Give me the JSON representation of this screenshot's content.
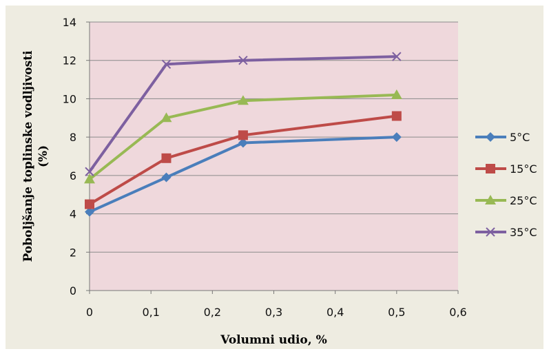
{
  "chart_data": {
    "type": "line",
    "title": "",
    "xlabel": "Volumni udio, %",
    "ylabel_line1": "Poboljšanje toplinske vodljivosti",
    "ylabel_line2": "(%)",
    "xlim": [
      0,
      0.6
    ],
    "ylim": [
      0,
      14
    ],
    "x_ticks": [
      "0",
      "0,1",
      "0,2",
      "0,3",
      "0,4",
      "0,5",
      "0,6"
    ],
    "y_ticks": [
      "0",
      "2",
      "4",
      "6",
      "8",
      "10",
      "12",
      "14"
    ],
    "x": [
      0,
      0.125,
      0.25,
      0.5
    ],
    "grid": "horizontal",
    "legend_position": "right",
    "plot_background": "#efd8dc",
    "panel_background": "#eeece1",
    "series": [
      {
        "name": "5°C",
        "values": [
          4.1,
          5.9,
          7.7,
          8.0
        ],
        "color": "#4a7ebb",
        "marker": "diamond"
      },
      {
        "name": "15°C",
        "values": [
          4.5,
          6.9,
          8.1,
          9.1
        ],
        "color": "#be4b48",
        "marker": "square"
      },
      {
        "name": "25°C",
        "values": [
          5.8,
          9.0,
          9.9,
          10.2
        ],
        "color": "#98b954",
        "marker": "triangle"
      },
      {
        "name": "35°C",
        "values": [
          6.2,
          11.8,
          12.0,
          12.2
        ],
        "color": "#7d60a0",
        "marker": "x"
      }
    ]
  }
}
